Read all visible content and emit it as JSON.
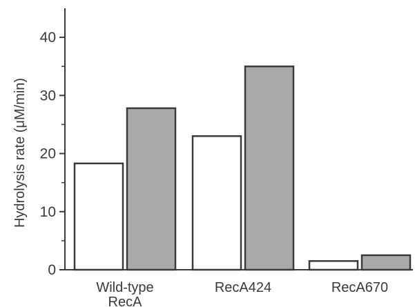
{
  "chart_data": {
    "type": "bar",
    "categories": [
      [
        "Wild-type",
        "RecA"
      ],
      [
        "RecA424"
      ],
      [
        "RecA670"
      ]
    ],
    "series": [
      {
        "values": [
          18.3,
          23.0,
          1.5
        ],
        "color": "#ffffff"
      },
      {
        "values": [
          27.8,
          35.0,
          2.5
        ],
        "color": "#a9a9a9"
      }
    ],
    "ylabel": "Hydrolysis rate (μM/min)",
    "xlabel": "",
    "title": "",
    "ylim": [
      0,
      45
    ],
    "yticks": [
      0,
      10,
      20,
      30,
      40
    ],
    "grid": false,
    "legend": "none"
  }
}
